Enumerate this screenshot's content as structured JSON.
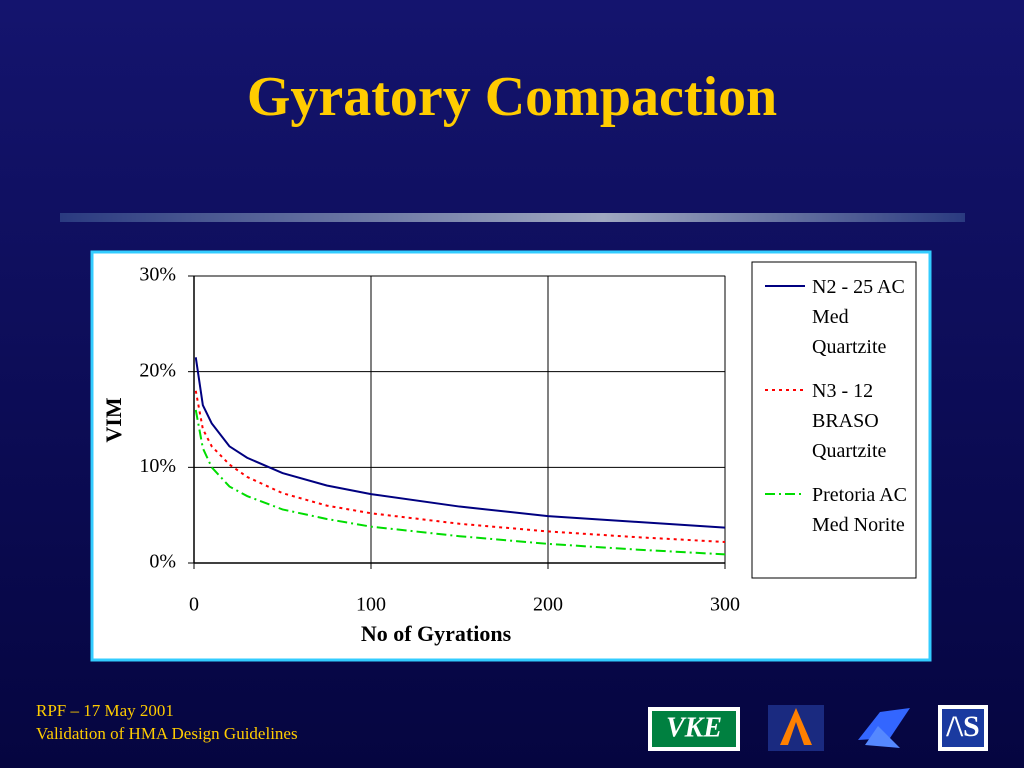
{
  "slide": {
    "title": "Gyratory Compaction",
    "footer": {
      "line1": "RPF – 17 May 2001",
      "line2": "Validation of HMA Design Guidelines"
    },
    "logo_text": "VKE"
  },
  "chart_data": {
    "type": "line",
    "x_label": "No of Gyrations",
    "y_label": "VIM",
    "x": [
      1,
      5,
      10,
      20,
      30,
      50,
      75,
      100,
      150,
      200,
      250,
      300
    ],
    "series": [
      {
        "name": "N2 - 25 AC Med Quartzite",
        "color": "#000080",
        "dash": "solid",
        "values": [
          21.5,
          16.5,
          14.6,
          12.2,
          11.0,
          9.4,
          8.1,
          7.2,
          5.9,
          4.9,
          4.3,
          3.7
        ]
      },
      {
        "name": "N3 - 12 BRASO Quartzite",
        "color": "#ff0000",
        "dash": "dotted",
        "values": [
          18.0,
          14.0,
          12.2,
          10.3,
          9.0,
          7.3,
          6.0,
          5.2,
          4.1,
          3.3,
          2.7,
          2.2
        ]
      },
      {
        "name": "Pretoria AC Med Norite",
        "color": "#00dd00",
        "dash": "dashdot",
        "values": [
          16.0,
          12.0,
          10.0,
          8.0,
          7.0,
          5.6,
          4.6,
          3.8,
          2.8,
          2.0,
          1.4,
          0.9
        ]
      }
    ],
    "xlim": [
      0,
      300
    ],
    "xticks": [
      0,
      100,
      200,
      300
    ],
    "ylim": [
      0,
      30
    ],
    "yticks": [
      {
        "value": 0,
        "label": "0%"
      },
      {
        "value": 10,
        "label": "10%"
      },
      {
        "value": 20,
        "label": "20%"
      },
      {
        "value": 30,
        "label": "30%"
      }
    ],
    "grid": true,
    "legend": "right"
  }
}
